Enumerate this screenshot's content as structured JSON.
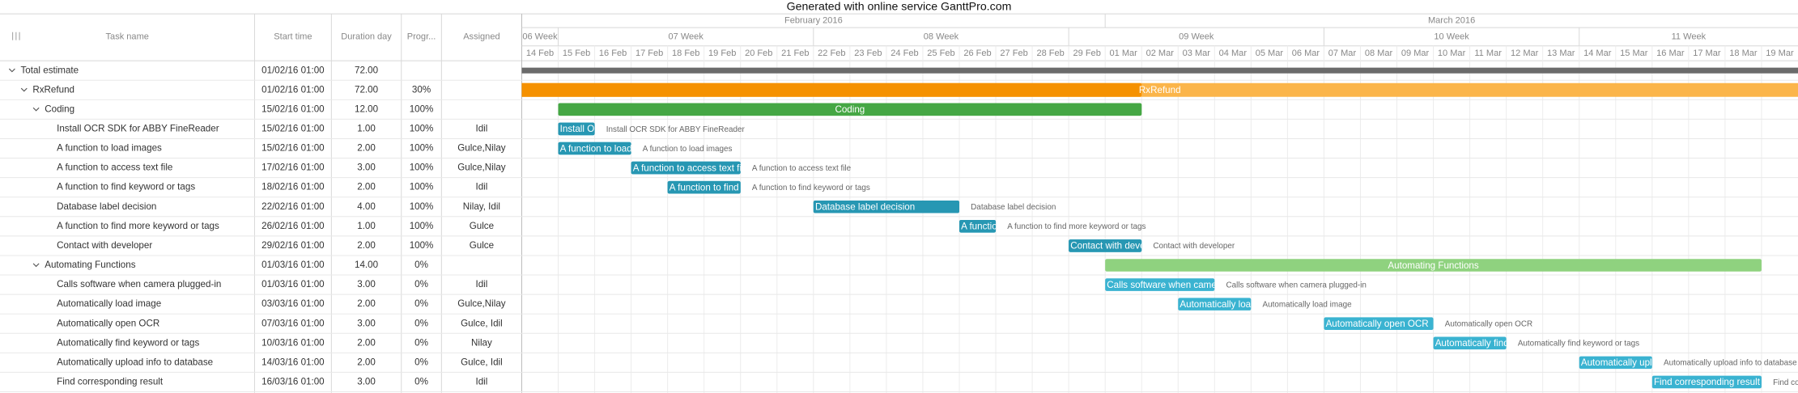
{
  "title": "Generated with online service GanttPro.com",
  "columns": [
    "Task name",
    "Start time",
    "Duration day",
    "Progr...",
    "Assigned"
  ],
  "timeline": {
    "months": [
      "February 2016",
      "March 2016"
    ],
    "weeks": [
      "06 Week",
      "07 Week",
      "08 Week",
      "09 Week",
      "10 Week",
      "11 Week"
    ],
    "days": [
      "14 Feb",
      "15 Feb",
      "16 Feb",
      "17 Feb",
      "18 Feb",
      "19 Feb",
      "20 Feb",
      "21 Feb",
      "22 Feb",
      "23 Feb",
      "24 Feb",
      "25 Feb",
      "26 Feb",
      "27 Feb",
      "28 Feb",
      "29 Feb",
      "01 Mar",
      "02 Mar",
      "03 Mar",
      "04 Mar",
      "05 Mar",
      "06 Mar",
      "07 Mar",
      "08 Mar",
      "09 Mar",
      "10 Mar",
      "11 Mar",
      "12 Mar",
      "13 Mar",
      "14 Mar",
      "15 Mar",
      "16 Mar",
      "17 Mar",
      "18 Mar",
      "19 Mar"
    ]
  },
  "tasks": [
    {
      "name": "Total estimate",
      "start": "01/02/16 01:00",
      "duration": "72.00",
      "children": [
        {
          "name": "RxRefund",
          "start": "01/02/16 01:00",
          "duration": "72.00",
          "progress": "30%",
          "children": [
            {
              "name": "Coding",
              "start": "15/02/16 01:00",
              "duration": "12.00",
              "progress": "100%",
              "children": [
                {
                  "name": "Install OCR SDK for ABBY FineReader",
                  "start": "15/02/16 01:00",
                  "duration": "1.00",
                  "progress": "100%",
                  "assigned": "Idil"
                },
                {
                  "name": "A function to load images",
                  "start": "15/02/16 01:00",
                  "duration": "2.00",
                  "progress": "100%",
                  "assigned": "Gulce,Nilay"
                },
                {
                  "name": "A function to access text file",
                  "start": "17/02/16 01:00",
                  "duration": "3.00",
                  "progress": "100%",
                  "assigned": "Gulce,Nilay"
                },
                {
                  "name": "A function to find keyword or tags",
                  "start": "18/02/16 01:00",
                  "duration": "2.00",
                  "progress": "100%",
                  "assigned": "Idil"
                },
                {
                  "name": "Database label decision",
                  "start": "22/02/16 01:00",
                  "duration": "4.00",
                  "progress": "100%",
                  "assigned": "Nilay, Idil"
                },
                {
                  "name": "A function to find more keyword or tags",
                  "start": "26/02/16 01:00",
                  "duration": "1.00",
                  "progress": "100%",
                  "assigned": "Gulce"
                },
                {
                  "name": "Contact with developer",
                  "start": "29/02/16 01:00",
                  "duration": "2.00",
                  "progress": "100%",
                  "assigned": "Gulce"
                }
              ]
            },
            {
              "name": "Automating Functions",
              "start": "01/03/16 01:00",
              "duration": "14.00",
              "progress": "0%",
              "children": [
                {
                  "name": "Calls software when camera plugged-in",
                  "start": "01/03/16 01:00",
                  "duration": "3.00",
                  "progress": "0%",
                  "assigned": "Idil"
                },
                {
                  "name": "Automatically load image",
                  "start": "03/03/16 01:00",
                  "duration": "2.00",
                  "progress": "0%",
                  "assigned": "Gulce,Nilay"
                },
                {
                  "name": "Automatically open OCR",
                  "start": "07/03/16 01:00",
                  "duration": "3.00",
                  "progress": "0%",
                  "assigned": "Gulce, Idil"
                },
                {
                  "name": "Automatically find keyword or tags",
                  "start": "10/03/16 01:00",
                  "duration": "2.00",
                  "progress": "0%",
                  "assigned": "Nilay"
                },
                {
                  "name": "Automatically upload info to database",
                  "start": "14/03/16 01:00",
                  "duration": "2.00",
                  "progress": "0%",
                  "assigned": "Gulce, Idil"
                },
                {
                  "name": "Find corresponding result",
                  "start": "16/03/16 01:00",
                  "duration": "3.00",
                  "progress": "0%",
                  "assigned": "Idil"
                }
              ]
            }
          ]
        }
      ]
    }
  ]
}
